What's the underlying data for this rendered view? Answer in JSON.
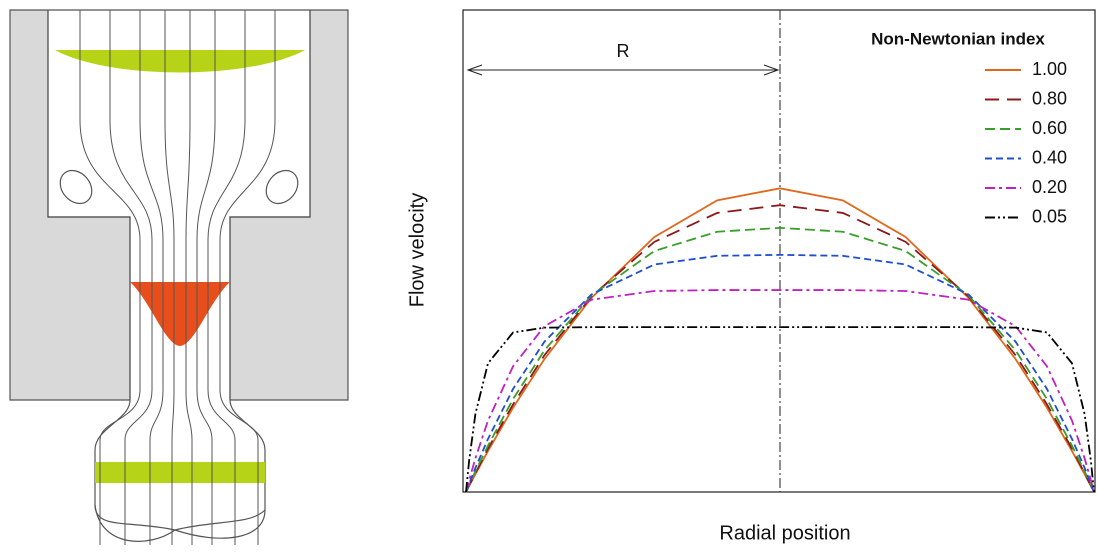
{
  "chart_data": {
    "type": "line",
    "xlabel": "Radial position",
    "ylabel": "Flow velocity",
    "legend_title": "Non-Newtonian index",
    "legend": "upper right",
    "annotation": "R",
    "xlim": [
      -1,
      1
    ],
    "ylim": [
      0,
      100
    ],
    "x": [
      -1,
      -0.99,
      -0.97,
      -0.93,
      -0.85,
      -0.75,
      -0.6,
      -0.4,
      -0.2,
      0,
      0.2,
      0.4,
      0.6,
      0.75,
      0.85,
      0.93,
      0.97,
      0.99,
      1
    ],
    "series": [
      {
        "name": "1.00",
        "color": "#e0681c",
        "style": "solid",
        "values": [
          0,
          1.25,
          3.7,
          8.5,
          17.5,
          27.6,
          40.3,
          52.9,
          60.5,
          63,
          60.5,
          52.9,
          40.3,
          27.6,
          17.5,
          8.5,
          3.7,
          1.25,
          0
        ]
      },
      {
        "name": "0.80",
        "color": "#8b1a1a",
        "style": "longdash",
        "values": [
          0,
          1.33,
          3.9,
          9.0,
          18.2,
          28.4,
          40.6,
          51.9,
          57.9,
          59.5,
          57.9,
          51.9,
          40.6,
          28.4,
          18.2,
          9.0,
          3.9,
          1.33,
          0
        ]
      },
      {
        "name": "0.60",
        "color": "#3a9e2a",
        "style": "dash",
        "values": [
          0,
          1.45,
          4.3,
          9.6,
          19.3,
          29.4,
          40.8,
          50.0,
          54.0,
          54.8,
          54.0,
          50.0,
          40.8,
          29.4,
          19.3,
          9.6,
          4.3,
          1.45,
          0
        ]
      },
      {
        "name": "0.40",
        "color": "#1f4fd0",
        "style": "shortdash",
        "values": [
          0,
          1.7,
          5.0,
          11.0,
          21.4,
          31.2,
          41.0,
          47.2,
          49.0,
          49.2,
          49.0,
          47.2,
          41.0,
          31.2,
          21.4,
          11.0,
          5.0,
          1.7,
          0
        ]
      },
      {
        "name": "0.20",
        "color": "#c020c0",
        "style": "dashdot",
        "values": [
          0,
          2.45,
          7.0,
          14.8,
          26.1,
          34.4,
          39.9,
          41.7,
          41.9,
          41.9,
          41.9,
          41.7,
          39.9,
          34.4,
          26.1,
          14.8,
          7.0,
          2.45,
          0
        ]
      },
      {
        "name": "0.05",
        "color": "#000000",
        "style": "dashdotdot",
        "values": [
          0,
          6.5,
          16.2,
          26.7,
          33.1,
          34.1,
          34.2,
          34.2,
          34.2,
          34.2,
          34.2,
          34.2,
          34.2,
          34.1,
          33.1,
          26.7,
          16.2,
          6.5,
          0
        ]
      }
    ]
  }
}
